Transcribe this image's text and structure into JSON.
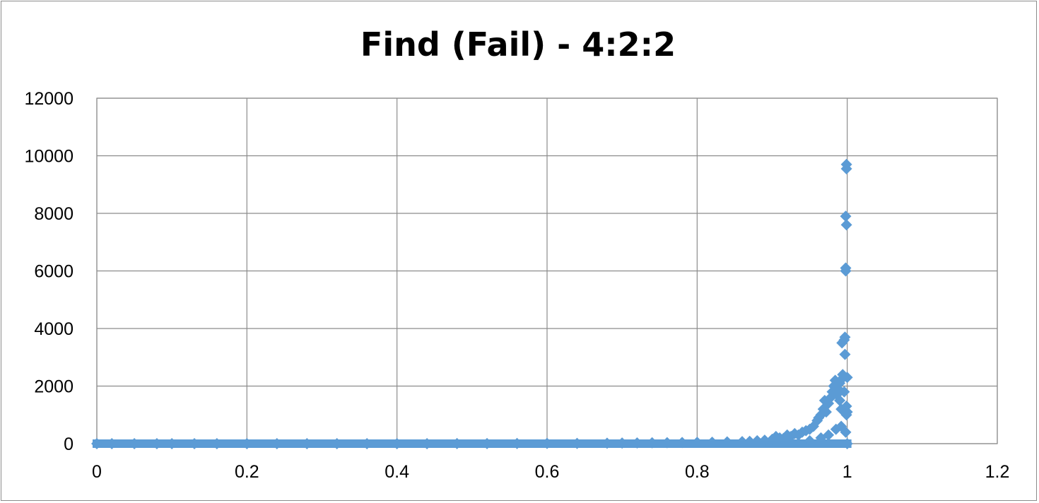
{
  "chart_data": {
    "type": "scatter",
    "title": "Find (Fail) - 4:2:2",
    "xlabel": "",
    "ylabel": "",
    "xlim": [
      0,
      1.2
    ],
    "ylim": [
      0,
      12000
    ],
    "x_ticks": [
      "0",
      "0.2",
      "0.4",
      "0.6",
      "0.8",
      "1",
      "1.2"
    ],
    "y_ticks": [
      "0",
      "2000",
      "4000",
      "6000",
      "8000",
      "10000",
      "12000"
    ],
    "grid": true,
    "legend": "none",
    "marker": "diamond",
    "color": "#5b9bd5",
    "series": [
      {
        "points": [
          [
            0.0,
            0
          ],
          [
            0.02,
            0
          ],
          [
            0.05,
            0
          ],
          [
            0.08,
            0
          ],
          [
            0.1,
            0
          ],
          [
            0.13,
            0
          ],
          [
            0.16,
            0
          ],
          [
            0.2,
            0
          ],
          [
            0.24,
            0
          ],
          [
            0.28,
            0
          ],
          [
            0.32,
            0
          ],
          [
            0.36,
            0
          ],
          [
            0.4,
            0
          ],
          [
            0.44,
            0
          ],
          [
            0.48,
            2
          ],
          [
            0.52,
            3
          ],
          [
            0.56,
            5
          ],
          [
            0.6,
            8
          ],
          [
            0.64,
            10
          ],
          [
            0.68,
            15
          ],
          [
            0.7,
            20
          ],
          [
            0.72,
            25
          ],
          [
            0.74,
            30
          ],
          [
            0.76,
            35
          ],
          [
            0.78,
            40
          ],
          [
            0.8,
            45
          ],
          [
            0.82,
            50
          ],
          [
            0.84,
            60
          ],
          [
            0.86,
            70
          ],
          [
            0.87,
            80
          ],
          [
            0.88,
            100
          ],
          [
            0.89,
            120
          ],
          [
            0.9,
            150
          ],
          [
            0.905,
            250
          ],
          [
            0.91,
            200
          ],
          [
            0.915,
            180
          ],
          [
            0.92,
            300
          ],
          [
            0.925,
            250
          ],
          [
            0.93,
            350
          ],
          [
            0.935,
            300
          ],
          [
            0.94,
            400
          ],
          [
            0.945,
            450
          ],
          [
            0.95,
            500
          ],
          [
            0.955,
            600
          ],
          [
            0.96,
            800
          ],
          [
            0.962,
            900
          ],
          [
            0.965,
            1000
          ],
          [
            0.968,
            1200
          ],
          [
            0.97,
            1500
          ],
          [
            0.972,
            1100
          ],
          [
            0.975,
            1400
          ],
          [
            0.978,
            1600
          ],
          [
            0.98,
            1800
          ],
          [
            0.982,
            2000
          ],
          [
            0.984,
            2200
          ],
          [
            0.986,
            1700
          ],
          [
            0.988,
            1900
          ],
          [
            0.99,
            2100
          ],
          [
            0.99,
            1500
          ],
          [
            0.992,
            1200
          ],
          [
            0.993,
            3500
          ],
          [
            0.994,
            2400
          ],
          [
            0.995,
            2300
          ],
          [
            0.996,
            3600
          ],
          [
            0.996,
            1800
          ],
          [
            0.997,
            3700
          ],
          [
            0.997,
            3100
          ],
          [
            0.998,
            6000
          ],
          [
            0.998,
            6100
          ],
          [
            0.998,
            7900
          ],
          [
            0.999,
            7600
          ],
          [
            0.999,
            9700
          ],
          [
            0.999,
            9550
          ],
          [
            0.999,
            1300
          ],
          [
            0.999,
            1000
          ],
          [
            1.0,
            2300
          ],
          [
            1.0,
            1100
          ],
          [
            1.0,
            0
          ],
          [
            0.985,
            500
          ],
          [
            0.975,
            300
          ],
          [
            0.965,
            200
          ],
          [
            0.95,
            100
          ],
          [
            0.992,
            600
          ],
          [
            0.998,
            400
          ]
        ]
      }
    ]
  }
}
